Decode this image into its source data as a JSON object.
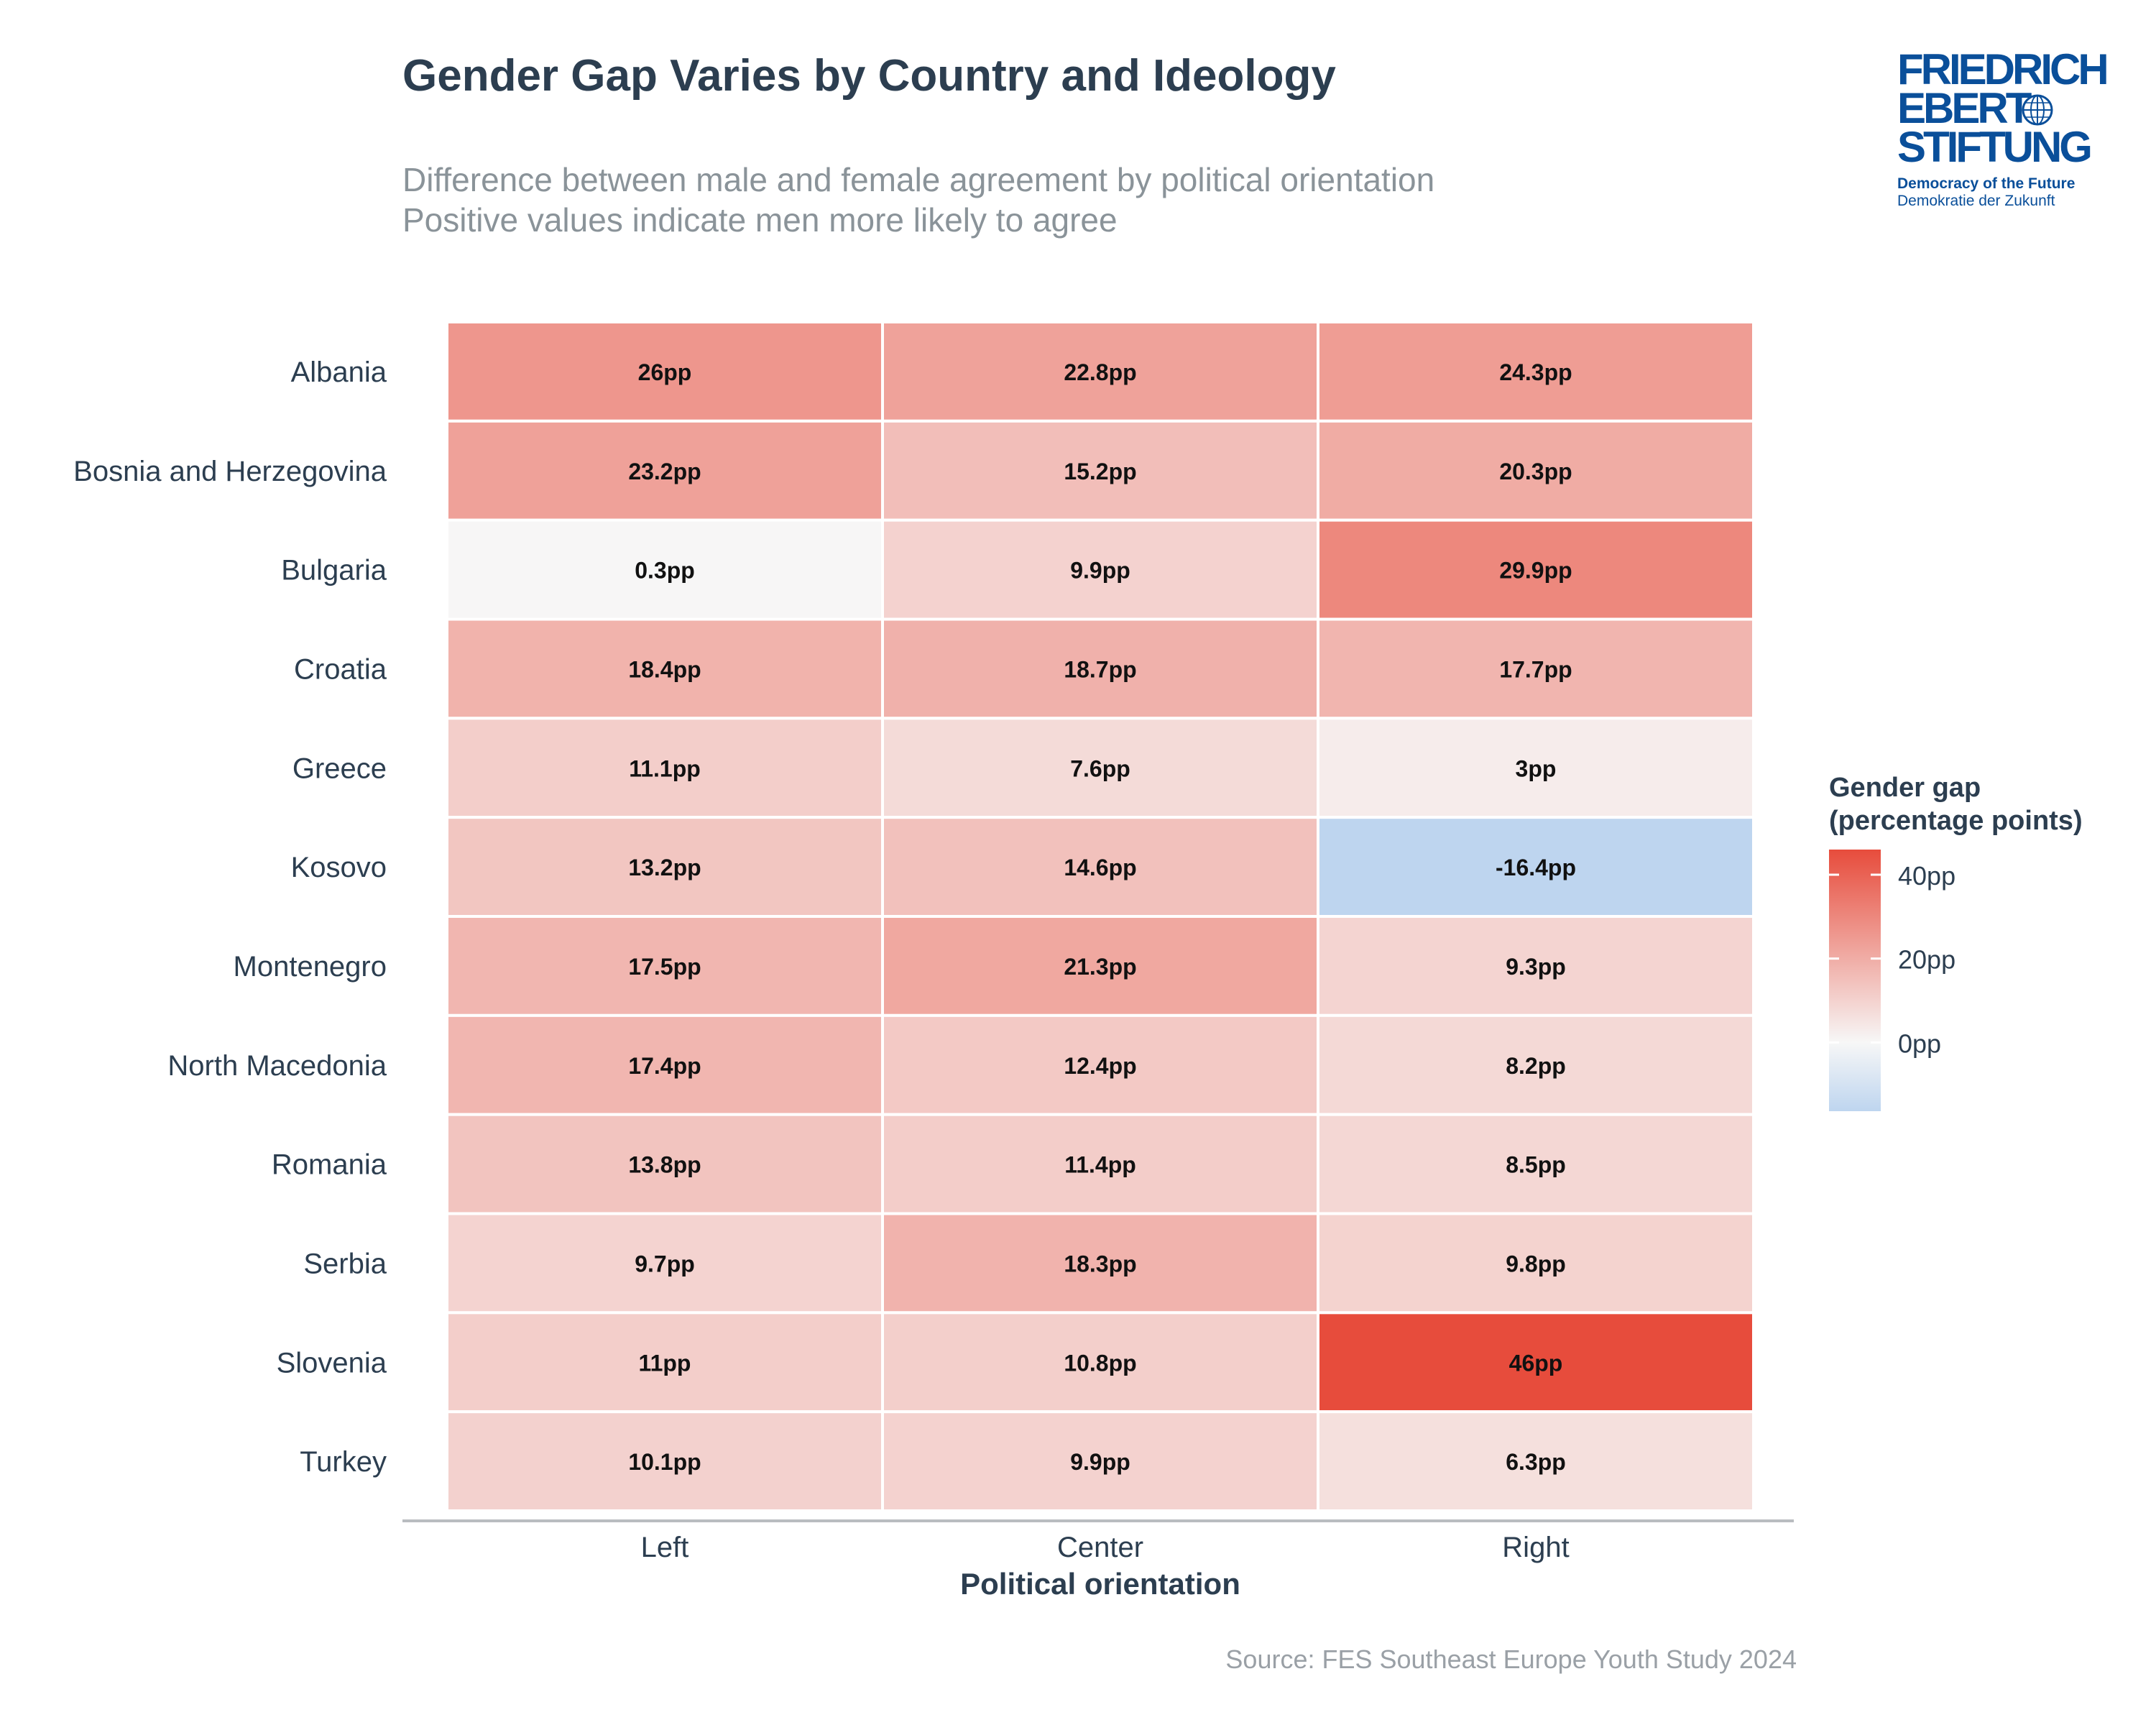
{
  "logo": {
    "line1": "FRIEDRICH",
    "line2": "EBERT",
    "line3": "STIFTUNG",
    "tagline_en": "Democracy of the Future",
    "tagline_de": "Demokratie der Zukunft"
  },
  "source": "Source: FES Southeast Europe Youth Study 2024",
  "chart_data": {
    "type": "heatmap",
    "title": "Gender Gap Varies by Country and Ideology",
    "subtitle_lines": [
      "Difference between male and female agreement by political orientation",
      "Positive values indicate men more likely to agree"
    ],
    "xlabel": "Political orientation",
    "ylabel": "",
    "x_categories": [
      "Left",
      "Center",
      "Right"
    ],
    "y_categories": [
      "Albania",
      "Bosnia and Herzegovina",
      "Bulgaria",
      "Croatia",
      "Greece",
      "Kosovo",
      "Montenegro",
      "North Macedonia",
      "Romania",
      "Serbia",
      "Slovenia",
      "Turkey"
    ],
    "values": [
      [
        26,
        22.8,
        24.3
      ],
      [
        23.2,
        15.2,
        20.3
      ],
      [
        0.3,
        9.9,
        29.9
      ],
      [
        18.4,
        18.7,
        17.7
      ],
      [
        11.1,
        7.6,
        3
      ],
      [
        13.2,
        14.6,
        -16.4
      ],
      [
        17.5,
        21.3,
        9.3
      ],
      [
        17.4,
        12.4,
        8.2
      ],
      [
        13.8,
        11.4,
        8.5
      ],
      [
        9.7,
        18.3,
        9.8
      ],
      [
        11,
        10.8,
        46
      ],
      [
        10.1,
        9.9,
        6.3
      ]
    ],
    "cell_labels": [
      [
        "26pp",
        "22.8pp",
        "24.3pp"
      ],
      [
        "23.2pp",
        "15.2pp",
        "20.3pp"
      ],
      [
        "0.3pp",
        "9.9pp",
        "29.9pp"
      ],
      [
        "18.4pp",
        "18.7pp",
        "17.7pp"
      ],
      [
        "11.1pp",
        "7.6pp",
        "3pp"
      ],
      [
        "13.2pp",
        "14.6pp",
        "-16.4pp"
      ],
      [
        "17.5pp",
        "21.3pp",
        "9.3pp"
      ],
      [
        "17.4pp",
        "12.4pp",
        "8.2pp"
      ],
      [
        "13.8pp",
        "11.4pp",
        "8.5pp"
      ],
      [
        "9.7pp",
        "18.3pp",
        "9.8pp"
      ],
      [
        "11pp",
        "10.8pp",
        "46pp"
      ],
      [
        "10.1pp",
        "9.9pp",
        "6.3pp"
      ]
    ],
    "legend": {
      "title_lines": [
        "Gender gap",
        "(percentage points)"
      ],
      "placement": "right",
      "range": [
        -16.4,
        46
      ],
      "ticks": [
        0,
        20,
        40
      ],
      "tick_labels": [
        "0pp",
        "20pp",
        "40pp"
      ],
      "color_low": "#bed5ef",
      "color_mid": "#f7f7f7",
      "color_high": "#e74c3c"
    }
  }
}
